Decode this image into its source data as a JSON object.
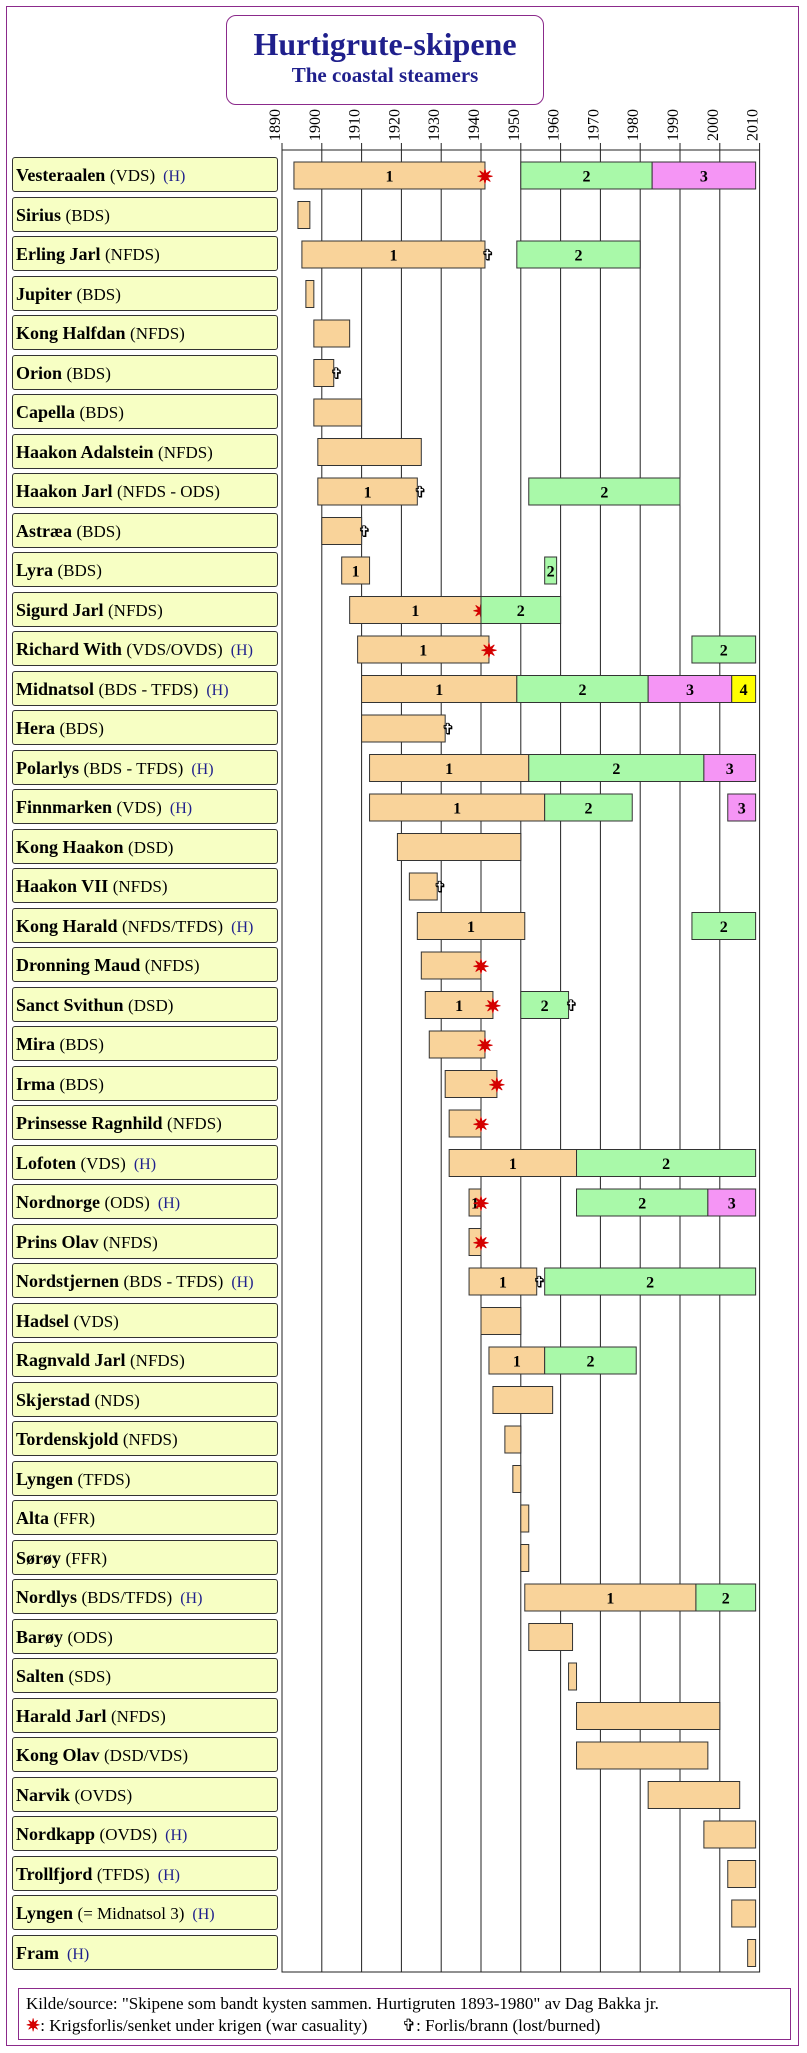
{
  "title": "Hurtigrute-skipene",
  "subtitle": "The coastal steamers",
  "source_text": "Kilde/source: \"Skipene som bandt kysten sammen. Hurtigruten 1893-1980\" av Dag Bakka jr.",
  "legend": {
    "war_symbol": "✷",
    "war_text": ": Krigsforlis/senket under krigen (war casuality)",
    "lost_symbol": "✞",
    "lost_text": ": Forlis/brann (lost/burned)"
  },
  "colors": {
    "1": "#f9d39a",
    "2": "#a9f9a9",
    "3": "#f595f5",
    "4": "#ffff00",
    "label_bg": "#f7ffc4",
    "frame": "#8b2a8b",
    "title": "#1f1f8c",
    "war": "#d40000"
  },
  "chart_data": {
    "type": "timeline",
    "x_axis": {
      "min": 1890,
      "max": 2010,
      "ticks": [
        1890,
        1900,
        1910,
        1920,
        1930,
        1940,
        1950,
        1960,
        1970,
        1980,
        1990,
        2000,
        2010
      ]
    },
    "grid": true,
    "ships": [
      {
        "name": "Vesteraalen",
        "owner": "(VDS)",
        "h": "(H)",
        "periods": [
          {
            "start": 1893,
            "end": 1941,
            "label": "1",
            "type": 1,
            "end_marker": "war"
          },
          {
            "start": 1950,
            "end": 1983,
            "label": "2",
            "type": 2
          },
          {
            "start": 1983,
            "end": 2009,
            "label": "3",
            "type": 3
          }
        ]
      },
      {
        "name": "Sirius",
        "owner": "(BDS)",
        "periods": [
          {
            "start": 1894,
            "end": 1897,
            "type": 1
          }
        ]
      },
      {
        "name": "Erling Jarl",
        "owner": "(NFDS)",
        "periods": [
          {
            "start": 1895,
            "end": 1941,
            "label": "1",
            "type": 1,
            "end_marker": "lost"
          },
          {
            "start": 1949,
            "end": 1980,
            "label": "2",
            "type": 2
          }
        ]
      },
      {
        "name": "Jupiter",
        "owner": "(BDS)",
        "periods": [
          {
            "start": 1896,
            "end": 1898,
            "type": 1
          }
        ]
      },
      {
        "name": "Kong Halfdan",
        "owner": "(NFDS)",
        "periods": [
          {
            "start": 1898,
            "end": 1907,
            "type": 1
          }
        ]
      },
      {
        "name": "Orion",
        "owner": "(BDS)",
        "periods": [
          {
            "start": 1898,
            "end": 1903,
            "type": 1,
            "end_marker": "lost"
          }
        ]
      },
      {
        "name": "Capella",
        "owner": "(BDS)",
        "periods": [
          {
            "start": 1898,
            "end": 1910,
            "type": 1
          }
        ]
      },
      {
        "name": "Haakon Adalstein",
        "owner": "(NFDS)",
        "periods": [
          {
            "start": 1899,
            "end": 1925,
            "type": 1
          }
        ]
      },
      {
        "name": "Haakon Jarl",
        "owner": "(NFDS - ODS)",
        "periods": [
          {
            "start": 1899,
            "end": 1924,
            "label": "1",
            "type": 1,
            "end_marker": "lost"
          },
          {
            "start": 1952,
            "end": 1990,
            "label": "2",
            "type": 2
          }
        ]
      },
      {
        "name": "Astræa",
        "owner": "(BDS)",
        "periods": [
          {
            "start": 1900,
            "end": 1910,
            "type": 1,
            "end_marker": "lost"
          }
        ]
      },
      {
        "name": "Lyra",
        "owner": "(BDS)",
        "periods": [
          {
            "start": 1905,
            "end": 1912,
            "label": "1",
            "type": 1
          },
          {
            "start": 1956,
            "end": 1959,
            "label": "2",
            "type": 2
          }
        ]
      },
      {
        "name": "Sigurd Jarl",
        "owner": "(NFDS)",
        "periods": [
          {
            "start": 1907,
            "end": 1940,
            "label": "1",
            "type": 1,
            "end_marker": "war"
          },
          {
            "start": 1940,
            "end": 1960,
            "label": "2",
            "type": 2
          }
        ]
      },
      {
        "name": "Richard With",
        "owner": "(VDS/OVDS)",
        "h": "(H)",
        "periods": [
          {
            "start": 1909,
            "end": 1942,
            "label": "1",
            "type": 1,
            "end_marker": "war"
          },
          {
            "start": 1993,
            "end": 2009,
            "label": "2",
            "type": 2
          }
        ]
      },
      {
        "name": "Midnatsol",
        "owner": "(BDS - TFDS)",
        "h": "(H)",
        "periods": [
          {
            "start": 1910,
            "end": 1949,
            "label": "1",
            "type": 1
          },
          {
            "start": 1949,
            "end": 1982,
            "label": "2",
            "type": 2
          },
          {
            "start": 1982,
            "end": 2003,
            "label": "3",
            "type": 3
          },
          {
            "start": 2003,
            "end": 2009,
            "label": "4",
            "type": 4
          }
        ]
      },
      {
        "name": "Hera",
        "owner": "(BDS)",
        "periods": [
          {
            "start": 1910,
            "end": 1931,
            "type": 1,
            "end_marker": "lost"
          }
        ]
      },
      {
        "name": "Polarlys",
        "owner": "(BDS - TFDS)",
        "h": "(H)",
        "periods": [
          {
            "start": 1912,
            "end": 1952,
            "label": "1",
            "type": 1
          },
          {
            "start": 1952,
            "end": 1996,
            "label": "2",
            "type": 2
          },
          {
            "start": 1996,
            "end": 2009,
            "label": "3",
            "type": 3
          }
        ]
      },
      {
        "name": "Finnmarken",
        "owner": "(VDS)",
        "h": "(H)",
        "periods": [
          {
            "start": 1912,
            "end": 1956,
            "label": "1",
            "type": 1
          },
          {
            "start": 1956,
            "end": 1978,
            "label": "2",
            "type": 2
          },
          {
            "start": 2002,
            "end": 2009,
            "label": "3",
            "type": 3
          }
        ]
      },
      {
        "name": "Kong Haakon",
        "owner": "(DSD)",
        "periods": [
          {
            "start": 1919,
            "end": 1950,
            "type": 1
          }
        ]
      },
      {
        "name": "Haakon VII",
        "owner": "(NFDS)",
        "periods": [
          {
            "start": 1922,
            "end": 1929,
            "type": 1,
            "end_marker": "lost"
          }
        ]
      },
      {
        "name": "Kong Harald",
        "owner": "(NFDS/TFDS)",
        "h": "(H)",
        "periods": [
          {
            "start": 1924,
            "end": 1951,
            "label": "1",
            "type": 1
          },
          {
            "start": 1993,
            "end": 2009,
            "label": "2",
            "type": 2
          }
        ]
      },
      {
        "name": "Dronning Maud",
        "owner": "(NFDS)",
        "periods": [
          {
            "start": 1925,
            "end": 1940,
            "type": 1,
            "end_marker": "war"
          }
        ]
      },
      {
        "name": "Sanct Svithun",
        "owner": "(DSD)",
        "periods": [
          {
            "start": 1926,
            "end": 1943,
            "label": "1",
            "type": 1,
            "end_marker": "war"
          },
          {
            "start": 1950,
            "end": 1962,
            "label": "2",
            "type": 2,
            "end_marker": "lost"
          }
        ]
      },
      {
        "name": "Mira",
        "owner": "(BDS)",
        "periods": [
          {
            "start": 1927,
            "end": 1941,
            "type": 1,
            "end_marker": "war"
          }
        ]
      },
      {
        "name": "Irma",
        "owner": "(BDS)",
        "periods": [
          {
            "start": 1931,
            "end": 1944,
            "type": 1,
            "end_marker": "war"
          }
        ]
      },
      {
        "name": "Prinsesse Ragnhild",
        "owner": "(NFDS)",
        "periods": [
          {
            "start": 1932,
            "end": 1940,
            "type": 1,
            "end_marker": "war"
          }
        ]
      },
      {
        "name": "Lofoten",
        "owner": "(VDS)",
        "h": "(H)",
        "periods": [
          {
            "start": 1932,
            "end": 1964,
            "label": "1",
            "type": 1
          },
          {
            "start": 1964,
            "end": 2009,
            "label": "2",
            "type": 2
          }
        ]
      },
      {
        "name": "Nordnorge",
        "owner": "(ODS)",
        "h": "(H)",
        "periods": [
          {
            "start": 1937,
            "end": 1940,
            "label": "1",
            "type": 1,
            "end_marker": "war"
          },
          {
            "start": 1964,
            "end": 1997,
            "label": "2",
            "type": 2
          },
          {
            "start": 1997,
            "end": 2009,
            "label": "3",
            "type": 3
          }
        ]
      },
      {
        "name": "Prins Olav",
        "owner": "(NFDS)",
        "periods": [
          {
            "start": 1937,
            "end": 1940,
            "type": 1,
            "end_marker": "war"
          }
        ]
      },
      {
        "name": "Nordstjernen",
        "owner": "(BDS - TFDS)",
        "h": "(H)",
        "periods": [
          {
            "start": 1937,
            "end": 1954,
            "label": "1",
            "type": 1,
            "end_marker": "lost"
          },
          {
            "start": 1956,
            "end": 2009,
            "label": "2",
            "type": 2
          }
        ]
      },
      {
        "name": "Hadsel",
        "owner": "(VDS)",
        "periods": [
          {
            "start": 1940,
            "end": 1950,
            "type": 1
          }
        ]
      },
      {
        "name": "Ragnvald Jarl",
        "owner": "(NFDS)",
        "periods": [
          {
            "start": 1942,
            "end": 1956,
            "label": "1",
            "type": 1
          },
          {
            "start": 1956,
            "end": 1979,
            "label": "2",
            "type": 2
          }
        ]
      },
      {
        "name": "Skjerstad",
        "owner": "(NDS)",
        "periods": [
          {
            "start": 1943,
            "end": 1958,
            "type": 1
          }
        ]
      },
      {
        "name": "Tordenskjold",
        "owner": "(NFDS)",
        "periods": [
          {
            "start": 1946,
            "end": 1950,
            "type": 1
          }
        ]
      },
      {
        "name": "Lyngen",
        "owner": "(TFDS)",
        "periods": [
          {
            "start": 1948,
            "end": 1950,
            "type": 1
          }
        ]
      },
      {
        "name": "Alta",
        "owner": "(FFR)",
        "periods": [
          {
            "start": 1950,
            "end": 1952,
            "type": 1
          }
        ]
      },
      {
        "name": "Sørøy",
        "owner": "(FFR)",
        "periods": [
          {
            "start": 1950,
            "end": 1952,
            "type": 1
          }
        ]
      },
      {
        "name": "Nordlys",
        "owner": "(BDS/TFDS)",
        "h": "(H)",
        "periods": [
          {
            "start": 1951,
            "end": 1994,
            "label": "1",
            "type": 1
          },
          {
            "start": 1994,
            "end": 2009,
            "label": "2",
            "type": 2
          }
        ]
      },
      {
        "name": "Barøy",
        "owner": "(ODS)",
        "periods": [
          {
            "start": 1952,
            "end": 1963,
            "type": 1
          }
        ]
      },
      {
        "name": "Salten",
        "owner": "(SDS)",
        "periods": [
          {
            "start": 1962,
            "end": 1964,
            "type": 1
          }
        ]
      },
      {
        "name": "Harald Jarl",
        "owner": "(NFDS)",
        "periods": [
          {
            "start": 1964,
            "end": 2000,
            "type": 1
          }
        ]
      },
      {
        "name": "Kong Olav",
        "owner": "(DSD/VDS)",
        "periods": [
          {
            "start": 1964,
            "end": 1997,
            "type": 1
          }
        ]
      },
      {
        "name": "Narvik",
        "owner": "(OVDS)",
        "periods": [
          {
            "start": 1982,
            "end": 2005,
            "type": 1
          }
        ]
      },
      {
        "name": "Nordkapp",
        "owner": "(OVDS)",
        "h": "(H)",
        "periods": [
          {
            "start": 1996,
            "end": 2009,
            "type": 1
          }
        ]
      },
      {
        "name": "Trollfjord",
        "owner": "(TFDS)",
        "h": "(H)",
        "periods": [
          {
            "start": 2002,
            "end": 2009,
            "type": 1
          }
        ]
      },
      {
        "name": "Lyngen",
        "owner": "(= Midnatsol 3)",
        "h": "(H)",
        "periods": [
          {
            "start": 2003,
            "end": 2009,
            "type": 1
          }
        ]
      },
      {
        "name": "Fram",
        "h": "(H)",
        "periods": [
          {
            "start": 2007,
            "end": 2009,
            "type": 1
          }
        ]
      }
    ]
  }
}
